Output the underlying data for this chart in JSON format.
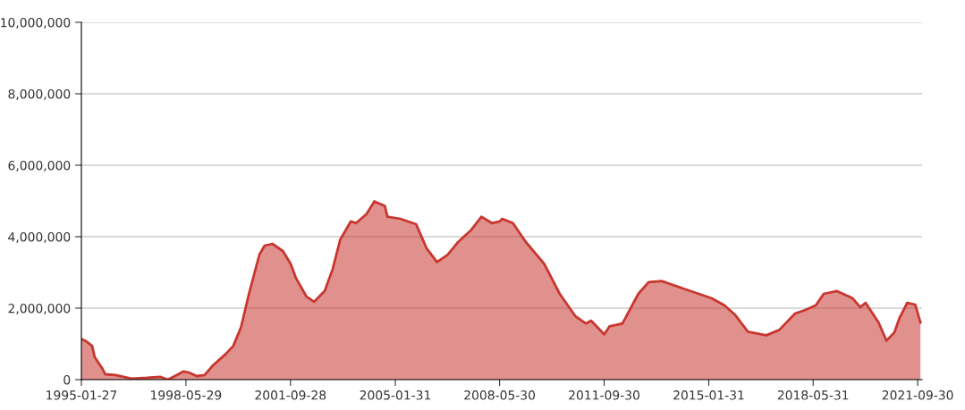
{
  "chart_data": {
    "type": "area",
    "xlim": [
      "1995-01-27",
      "2021-11-20"
    ],
    "xticks": [
      "1995-01-27",
      "1998-05-29",
      "2001-09-28",
      "2005-01-31",
      "2008-05-30",
      "2011-09-30",
      "2015-01-31",
      "2018-05-31",
      "2021-09-30"
    ],
    "ylim": [
      0,
      10000000
    ],
    "yticks": [
      {
        "value": 0,
        "label": "0"
      },
      {
        "value": 2000000,
        "label": "2,000,000"
      },
      {
        "value": 4000000,
        "label": "4,000,000"
      },
      {
        "value": 6000000,
        "label": "6,000,000"
      },
      {
        "value": 8000000,
        "label": "8,000,000"
      },
      {
        "value": 10000000,
        "label": "10,000,000"
      }
    ],
    "grid": "y",
    "x": [
      "1995-01-27",
      "1995-04",
      "1995-06",
      "1995-07",
      "1995-10",
      "1995-11",
      "1996-03",
      "1996-09",
      "1997-03",
      "1997-08",
      "1997-11",
      "1998-03",
      "1998-05",
      "1998-07",
      "1998-10",
      "1999-01",
      "1999-04",
      "1999-09",
      "1999-12",
      "2000-03",
      "2000-06",
      "2000-10",
      "2000-12",
      "2001-03",
      "2001-07",
      "2001-10",
      "2001-12",
      "2002-04",
      "2002-07",
      "2002-11",
      "2003-02",
      "2003-05",
      "2003-09",
      "2003-11",
      "2004-03",
      "2004-06",
      "2004-10",
      "2004-11",
      "2005-04",
      "2005-10",
      "2006-02",
      "2006-06",
      "2006-10",
      "2007-02",
      "2007-07",
      "2007-11",
      "2008-03",
      "2008-06",
      "2008-07",
      "2008-11",
      "2009-04",
      "2009-11",
      "2010-05",
      "2010-11",
      "2011-03",
      "2011-05",
      "2011-10",
      "2011-12",
      "2012-05",
      "2012-11",
      "2013-03",
      "2013-08",
      "2013-11",
      "2014-07",
      "2015-03",
      "2015-08",
      "2015-12",
      "2016-05",
      "2016-12",
      "2017-05",
      "2017-11",
      "2018-03",
      "2018-07",
      "2018-10",
      "2019-03",
      "2019-09",
      "2019-12",
      "2020-02",
      "2020-07",
      "2020-10",
      "2021-01",
      "2021-03",
      "2021-06",
      "2021-09",
      "2021-11"
    ],
    "series": [
      {
        "color": "#c8362f",
        "values": [
          1140000,
          1060000,
          940000,
          630000,
          300000,
          150000,
          130000,
          30000,
          50000,
          80000,
          0,
          150000,
          230000,
          200000,
          100000,
          130000,
          380000,
          710000,
          940000,
          1470000,
          2400000,
          3500000,
          3750000,
          3800000,
          3600000,
          3240000,
          2840000,
          2330000,
          2180000,
          2480000,
          3090000,
          3920000,
          4430000,
          4380000,
          4630000,
          4990000,
          4860000,
          4560000,
          4500000,
          4350000,
          3670000,
          3290000,
          3490000,
          3850000,
          4180000,
          4560000,
          4380000,
          4430000,
          4500000,
          4380000,
          3850000,
          3240000,
          2400000,
          1770000,
          1570000,
          1650000,
          1270000,
          1490000,
          1570000,
          2400000,
          2730000,
          2760000,
          2680000,
          2480000,
          2280000,
          2080000,
          1820000,
          1340000,
          1240000,
          1390000,
          1850000,
          1950000,
          2080000,
          2400000,
          2480000,
          2280000,
          2030000,
          2150000,
          1600000,
          1090000,
          1320000,
          1720000,
          2150000,
          2100000,
          1600000
        ]
      }
    ]
  }
}
